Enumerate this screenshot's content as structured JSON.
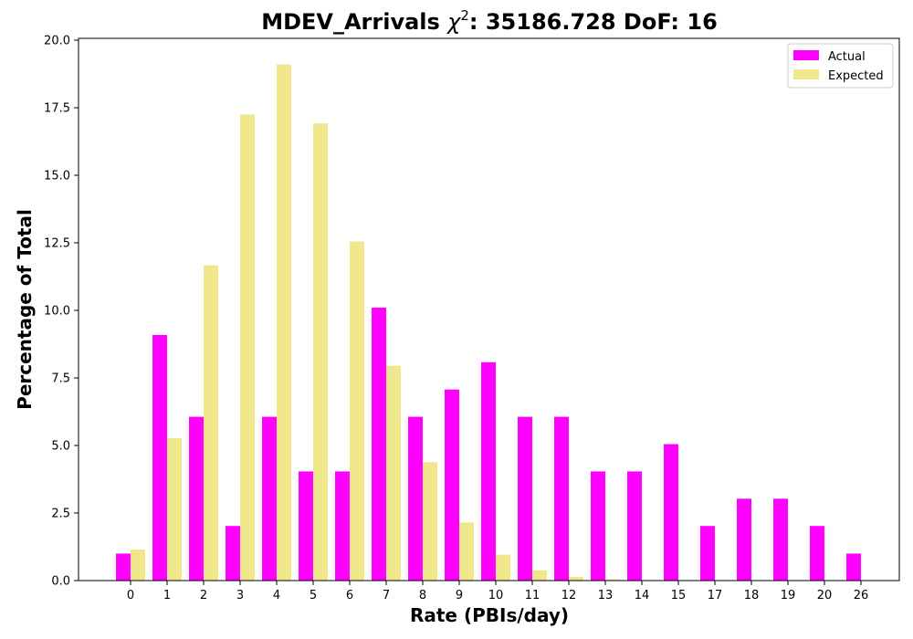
{
  "chart_data": {
    "type": "bar",
    "title_main": "MDEV_Arrivals ",
    "title_chi": "χ",
    "title_sup": "2",
    "title_rest": ": 35186.728 DoF: 16",
    "xlabel": "Rate (PBIs/day)",
    "ylabel": "Percentage of Total",
    "ylim": [
      0,
      20
    ],
    "yticks": [
      "0.0",
      "2.5",
      "5.0",
      "7.5",
      "10.0",
      "12.5",
      "15.0",
      "17.5",
      "20.0"
    ],
    "categories": [
      "0",
      "1",
      "2",
      "3",
      "4",
      "5",
      "6",
      "7",
      "8",
      "9",
      "10",
      "11",
      "12",
      "13",
      "14",
      "15",
      "17",
      "18",
      "19",
      "20",
      "26"
    ],
    "series": [
      {
        "name": "Actual",
        "color": "#ff00ff",
        "values": [
          1.0,
          9.09,
          6.06,
          2.02,
          6.06,
          4.04,
          4.04,
          10.1,
          6.06,
          7.07,
          8.08,
          6.06,
          6.06,
          4.04,
          4.04,
          5.05,
          2.02,
          3.03,
          3.03,
          2.02,
          1.0
        ]
      },
      {
        "name": "Expected",
        "color": "#f0e68c",
        "values": [
          1.15,
          5.27,
          11.67,
          17.25,
          19.1,
          16.92,
          12.55,
          7.95,
          4.38,
          2.15,
          0.96,
          0.38,
          0.14,
          0.05,
          0.02,
          0.0,
          0.0,
          0.0,
          0.0,
          0.0,
          0.0
        ]
      }
    ],
    "legend_position": "upper-right",
    "grid": false
  }
}
